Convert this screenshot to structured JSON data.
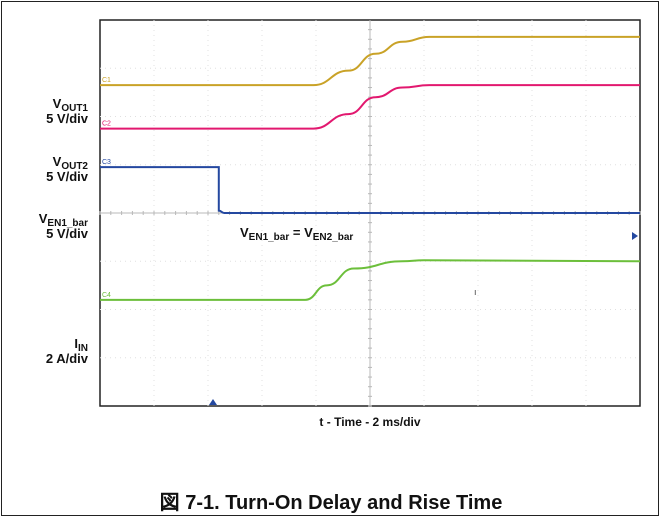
{
  "figure": {
    "caption": "図 7-1. Turn-On Delay and Rise Time"
  },
  "chart_data": {
    "type": "line",
    "title": "",
    "xlabel": "t - Time - 2 ms/div",
    "ylabel": "",
    "xlim": [
      0,
      10
    ],
    "ylim": [
      -4,
      4
    ],
    "grid": true,
    "annotation": {
      "main": "V",
      "sub1": "EN1_bar",
      "eq": " = V",
      "sub2": "EN2_bar"
    },
    "channel_labels": [
      {
        "main": "V",
        "sub": "OUT1",
        "scale": "5 V/div"
      },
      {
        "main": "V",
        "sub": "OUT2",
        "scale": "5 V/div"
      },
      {
        "main": "V",
        "sub": "EN1_bar",
        "scale": "5 V/div"
      },
      {
        "main": "I",
        "sub": "IN",
        "scale": "2 A/div"
      }
    ],
    "series": [
      {
        "marker": "C1",
        "color": "#c9a227",
        "x": [
          0,
          3.95,
          4.6,
          5.1,
          5.6,
          6.1,
          10
        ],
        "y": [
          2.65,
          2.65,
          2.95,
          3.3,
          3.55,
          3.65,
          3.65
        ]
      },
      {
        "marker": "C2",
        "color": "#e2186f",
        "x": [
          0,
          3.95,
          4.6,
          5.1,
          5.6,
          6.1,
          10
        ],
        "y": [
          1.75,
          1.75,
          2.05,
          2.4,
          2.6,
          2.65,
          2.65
        ]
      },
      {
        "marker": "C3",
        "color": "#2448a0",
        "x": [
          0,
          2.2,
          2.2,
          2.3,
          10
        ],
        "y": [
          0.95,
          0.95,
          0.05,
          0.0,
          0.0
        ]
      },
      {
        "marker": "C4",
        "color": "#6cbf3b",
        "x": [
          0,
          3.8,
          4.2,
          4.7,
          5.6,
          6.0,
          10
        ],
        "y": [
          -1.8,
          -1.8,
          -1.5,
          -1.15,
          -1.0,
          -0.98,
          -1.0
        ]
      }
    ]
  }
}
